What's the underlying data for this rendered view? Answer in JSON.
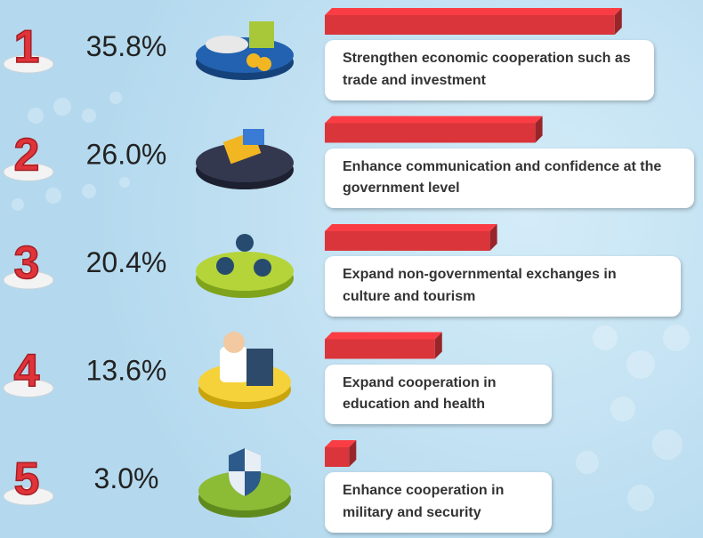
{
  "chart_data": {
    "type": "bar",
    "ranks": [
      1,
      2,
      3,
      4,
      5
    ],
    "categories": [
      "Strengthen economic cooperation such as trade and investment",
      "Enhance communication and confidence at the government level",
      "Expand non-governmental exchanges in culture and tourism",
      "Expand cooperation in education and health",
      "Enhance cooperation in military and security"
    ],
    "values": [
      35.8,
      26.0,
      20.4,
      13.6,
      3.0
    ],
    "value_labels": [
      "35.8%",
      "26.0%",
      "20.4%",
      "13.6%",
      "3.0%"
    ],
    "color": "#d9353b"
  }
}
